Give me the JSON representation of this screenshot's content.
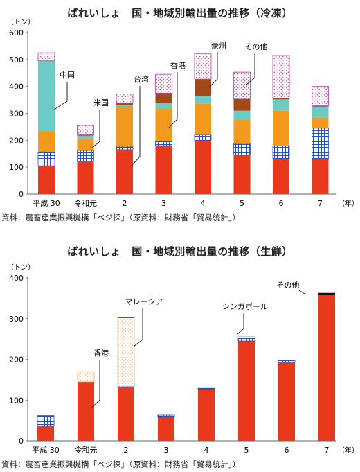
{
  "chart_data": [
    {
      "type": "bar",
      "stacked": true,
      "title": "ばれいしょ　国・地域別輸出量の推移（冷凍）",
      "unit_label": "（トン）",
      "year_unit": "（年）",
      "categories": [
        "平成 30",
        "令和元",
        "2",
        "3",
        "4",
        "5",
        "6",
        "7"
      ],
      "ylim": [
        0,
        600
      ],
      "yticks": [
        0,
        100,
        200,
        300,
        400,
        500,
        600
      ],
      "grid": false,
      "series": [
        {
          "name": "台湾",
          "color": "#e8391d",
          "pattern": "solid",
          "values": [
            105,
            122,
            165,
            180,
            200,
            145,
            132,
            130
          ]
        },
        {
          "name": "米国",
          "color": "#2c4fb0",
          "pattern": "grid",
          "values": [
            50,
            40,
            12,
            18,
            20,
            42,
            48,
            115
          ]
        },
        {
          "name": "香港",
          "color": "#f39a1e",
          "pattern": "solid",
          "values": [
            78,
            45,
            150,
            120,
            115,
            90,
            130,
            40
          ]
        },
        {
          "name": "中国",
          "color": "#6dcbc6",
          "pattern": "solid",
          "values": [
            262,
            10,
            5,
            20,
            30,
            33,
            42,
            40
          ]
        },
        {
          "name": "豪州",
          "color": "#a14a18",
          "pattern": "solid",
          "values": [
            0,
            3,
            5,
            37,
            62,
            43,
            5,
            3
          ]
        },
        {
          "name": "その他",
          "color": "#c0399b",
          "pattern": "dots",
          "values": [
            30,
            35,
            35,
            70,
            95,
            100,
            158,
            72
          ]
        }
      ],
      "annotations": [
        "中国",
        "米国",
        "台湾",
        "香港",
        "豪州",
        "その他"
      ],
      "source": "資料：農畜産業振興機構「ベジ探」（原資料：財務省「貿易統計」）"
    },
    {
      "type": "bar",
      "stacked": true,
      "title": "ばれいしょ　国・地域別輸出量の推移（生鮮）",
      "unit_label": "（トン）",
      "year_unit": "（年）",
      "categories": [
        "平成 30",
        "令和元",
        "2",
        "3",
        "4",
        "5",
        "6",
        "7"
      ],
      "ylim": [
        0,
        400
      ],
      "yticks": [
        0,
        100,
        200,
        300,
        400
      ],
      "grid": false,
      "series": [
        {
          "name": "香港",
          "color": "#e8391d",
          "pattern": "solid",
          "values": [
            37,
            145,
            132,
            58,
            127,
            245,
            193,
            358
          ]
        },
        {
          "name": "シンガポール",
          "color": "#2c4fb0",
          "pattern": "grid",
          "values": [
            25,
            0,
            2,
            5,
            2,
            8,
            5,
            0
          ]
        },
        {
          "name": "マレーシア",
          "color": "#f8b06a",
          "pattern": "dots",
          "values": [
            0,
            25,
            168,
            0,
            0,
            3,
            0,
            0
          ]
        },
        {
          "name": "その他",
          "color": "#111111",
          "pattern": "solid",
          "values": [
            0,
            0,
            2,
            0,
            0,
            0,
            0,
            5
          ]
        }
      ],
      "annotations": [
        "香港",
        "マレーシア",
        "シンガポール",
        "その他"
      ],
      "source": "資料：農畜産業振興機構「ベジ探」（原資料：財務省「貿易統計」）"
    }
  ]
}
